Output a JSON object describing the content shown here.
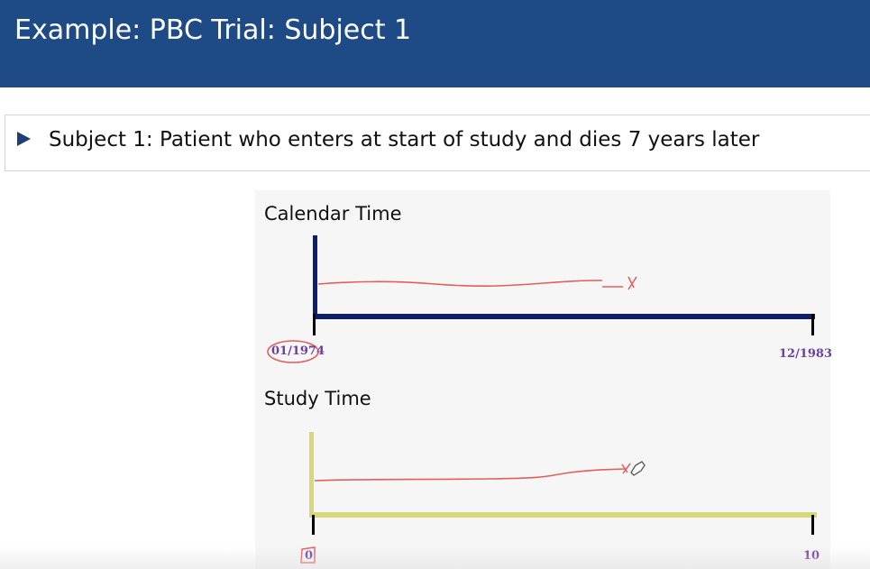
{
  "slide": {
    "title": "Example: PBC Trial: Subject 1",
    "bullet": "Subject 1: Patient who enters at start of study and dies 7 years later"
  },
  "figure": {
    "calendar": {
      "label": "Calendar Time",
      "start_tick": "01/1974",
      "end_tick": "12/1983",
      "axis_color": "#0d1f6b"
    },
    "study": {
      "label": "Study Time",
      "start_tick": "0",
      "end_tick": "10",
      "axis_color": "#d9d77a"
    },
    "annotation_color": "#e0605a",
    "tick_label_color": "#6b3fa0"
  },
  "colors": {
    "title_bar": "#1e4b86",
    "bullet_marker": "#1e3f73"
  },
  "icons": {
    "bullet": "triangle-right-icon",
    "death_marker": "x-mark-icon",
    "pen_cursor": "pen-cursor-icon"
  }
}
